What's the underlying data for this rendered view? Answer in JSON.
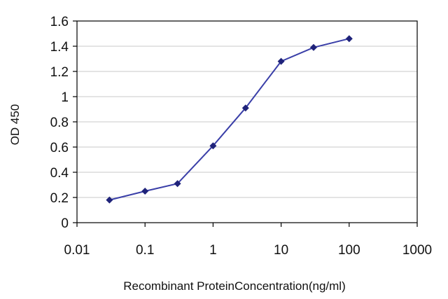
{
  "chart_data": {
    "type": "scatter",
    "title": "",
    "xlabel": "Recombinant ProteinConcentration(ng/ml)",
    "ylabel": "OD 450",
    "x_scale": "log",
    "xlim": [
      0.01,
      1000
    ],
    "ylim": [
      0,
      1.6
    ],
    "x_ticks": [
      0.01,
      0.1,
      1,
      10,
      100,
      1000
    ],
    "x_tick_labels": [
      "0.01",
      "0.1",
      "1",
      "10",
      "100",
      "1000"
    ],
    "y_ticks": [
      0,
      0.2,
      0.4,
      0.6,
      0.8,
      1,
      1.2,
      1.4,
      1.6
    ],
    "y_tick_labels": [
      "0",
      "0.2",
      "0.4",
      "0.6",
      "0.8",
      "1",
      "1.2",
      "1.4",
      "1.6"
    ],
    "grid": "horizontal",
    "legend": "none",
    "series": [
      {
        "x": [
          0.03,
          0.1,
          0.3,
          1,
          3,
          10,
          30,
          100
        ],
        "y": [
          0.18,
          0.25,
          0.31,
          0.61,
          0.91,
          1.28,
          1.39,
          1.46
        ],
        "color": "#2b2f8f",
        "marker": "diamond"
      }
    ],
    "colors": {
      "line": "#3a3fa8",
      "marker": "#1f237a",
      "grid": "#c8c8c8",
      "frame": "#000000"
    }
  }
}
